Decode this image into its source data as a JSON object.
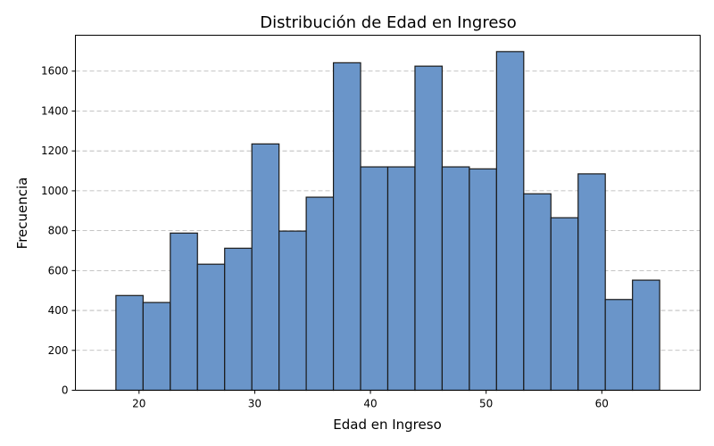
{
  "chart_data": {
    "type": "bar",
    "title": "Distribución de Edad en Ingreso",
    "xlabel": "Edad en Ingreso",
    "ylabel": "Frecuencia",
    "xlim": [
      14.5,
      68.5
    ],
    "ylim": [
      0,
      1780
    ],
    "xticks": [
      20,
      30,
      40,
      50,
      60
    ],
    "yticks": [
      0,
      200,
      400,
      600,
      800,
      1000,
      1200,
      1400,
      1600
    ],
    "grid": "y-dashed",
    "bin_start": 18,
    "bin_end": 65,
    "bins": [
      {
        "x0": 18.0,
        "x1": 20.35,
        "value": 475
      },
      {
        "x0": 20.35,
        "x1": 22.7,
        "value": 440
      },
      {
        "x0": 22.7,
        "x1": 25.05,
        "value": 788
      },
      {
        "x0": 25.05,
        "x1": 27.4,
        "value": 632
      },
      {
        "x0": 27.4,
        "x1": 29.75,
        "value": 712
      },
      {
        "x0": 29.75,
        "x1": 32.1,
        "value": 1235
      },
      {
        "x0": 32.1,
        "x1": 34.45,
        "value": 798
      },
      {
        "x0": 34.45,
        "x1": 36.8,
        "value": 968
      },
      {
        "x0": 36.8,
        "x1": 39.15,
        "value": 1642
      },
      {
        "x0": 39.15,
        "x1": 41.5,
        "value": 1120
      },
      {
        "x0": 41.5,
        "x1": 43.85,
        "value": 1120
      },
      {
        "x0": 43.85,
        "x1": 46.2,
        "value": 1625
      },
      {
        "x0": 46.2,
        "x1": 48.55,
        "value": 1120
      },
      {
        "x0": 48.55,
        "x1": 50.9,
        "value": 1110
      },
      {
        "x0": 50.9,
        "x1": 53.25,
        "value": 1698
      },
      {
        "x0": 53.25,
        "x1": 55.6,
        "value": 985
      },
      {
        "x0": 55.6,
        "x1": 57.95,
        "value": 865
      },
      {
        "x0": 57.95,
        "x1": 60.3,
        "value": 1085
      },
      {
        "x0": 60.3,
        "x1": 62.65,
        "value": 455
      },
      {
        "x0": 62.65,
        "x1": 65.0,
        "value": 552
      }
    ],
    "colors": {
      "bar": "#6a95c9",
      "edge": "#1a1a1a"
    }
  }
}
